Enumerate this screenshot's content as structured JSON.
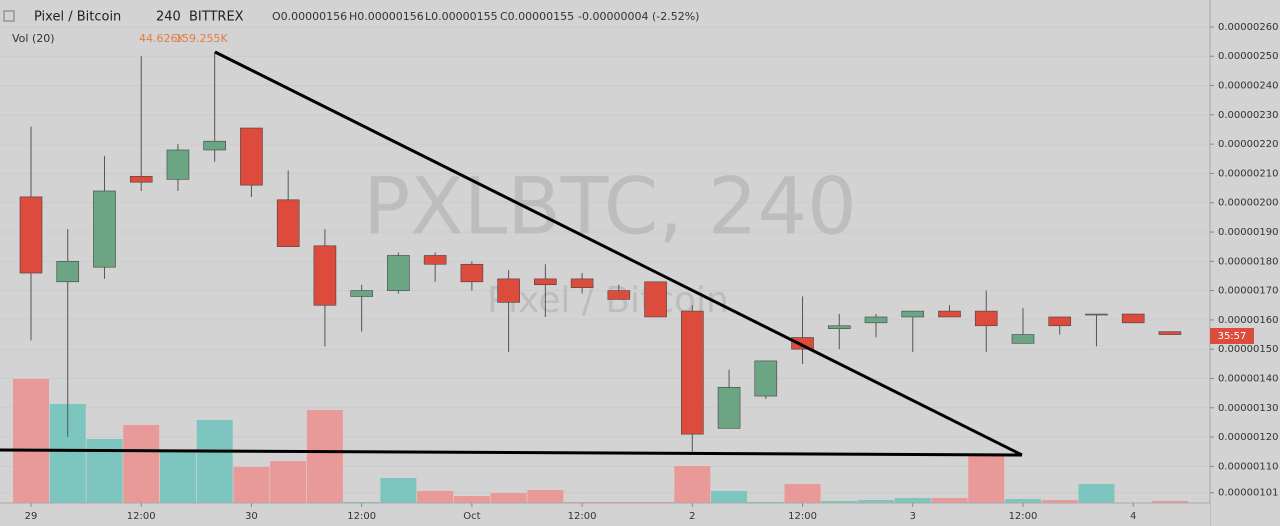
{
  "header": {
    "symbol": "Pixel / Bitcoin",
    "interval": "240",
    "exchange": "BITTREX",
    "open": "O0.00000156",
    "high": "H0.00000156",
    "low": "L0.00000155",
    "close": "C0.00000155",
    "change": "-0.00000004 (-2.52%)",
    "volume_label": "Vol (20)",
    "volume_value": "44.626K",
    "volume_ma": "159.255K",
    "watermark": "PXLBTC, 240",
    "watermark_sub": "Pixel / Bitcoin",
    "countdown": "35:57"
  },
  "chart_data": {
    "type": "candlestick",
    "categories": [
      "29",
      null,
      null,
      "12:00",
      null,
      null,
      "30",
      null,
      null,
      "12:00",
      null,
      null,
      "Oct",
      null,
      null,
      "12:00",
      null,
      null,
      "2",
      null,
      null,
      "12:00",
      null,
      null,
      "3",
      null,
      null,
      "12:00",
      null,
      null,
      "4",
      null
    ],
    "open": [
      2.02e-06,
      1.73e-06,
      1.78e-06,
      2.09e-06,
      2.08e-06,
      2.18e-06,
      2.255e-06,
      2.01e-06,
      1.853e-06,
      1.68e-06,
      1.7e-06,
      1.82e-06,
      1.79e-06,
      1.74e-06,
      1.74e-06,
      1.74e-06,
      1.7e-06,
      1.73e-06,
      1.63e-06,
      1.23e-06,
      1.34e-06,
      1.54e-06,
      1.57e-06,
      1.59e-06,
      1.61e-06,
      1.63e-06,
      1.63e-06,
      1.52e-06,
      1.61e-06,
      1.62e-06,
      1.62e-06,
      1.56e-06
    ],
    "high": [
      2.26e-06,
      1.91e-06,
      2.16e-06,
      2.5e-06,
      2.2e-06,
      2.515e-06,
      2.255e-06,
      2.11e-06,
      1.91e-06,
      1.72e-06,
      1.83e-06,
      1.83e-06,
      1.8e-06,
      1.77e-06,
      1.79e-06,
      1.76e-06,
      1.72e-06,
      1.73e-06,
      1.65e-06,
      1.43e-06,
      1.46e-06,
      1.68e-06,
      1.62e-06,
      1.62e-06,
      1.63e-06,
      1.65e-06,
      1.7e-06,
      1.64e-06,
      1.61e-06,
      1.62e-06,
      1.62e-06,
      1.56e-06
    ],
    "low": [
      1.53e-06,
      1.2e-06,
      1.74e-06,
      2.04e-06,
      2.04e-06,
      2.14e-06,
      2.02e-06,
      1.85e-06,
      1.51e-06,
      1.56e-06,
      1.69e-06,
      1.73e-06,
      1.7e-06,
      1.49e-06,
      1.61e-06,
      1.69e-06,
      1.67e-06,
      1.61e-06,
      1.15e-06,
      1.23e-06,
      1.33e-06,
      1.45e-06,
      1.5e-06,
      1.54e-06,
      1.49e-06,
      1.61e-06,
      1.49e-06,
      1.52e-06,
      1.55e-06,
      1.51e-06,
      1.59e-06,
      1.55e-06
    ],
    "close": [
      1.76e-06,
      1.8e-06,
      2.04e-06,
      2.07e-06,
      2.18e-06,
      2.21e-06,
      2.06e-06,
      1.85e-06,
      1.65e-06,
      1.7e-06,
      1.82e-06,
      1.79e-06,
      1.73e-06,
      1.66e-06,
      1.72e-06,
      1.71e-06,
      1.67e-06,
      1.61e-06,
      1.21e-06,
      1.37e-06,
      1.46e-06,
      1.5e-06,
      1.58e-06,
      1.61e-06,
      1.63e-06,
      1.61e-06,
      1.58e-06,
      1.55e-06,
      1.58e-06,
      1.62e-06,
      1.59e-06,
      1.55e-06
    ],
    "volume": [
      124,
      99,
      64,
      78,
      51,
      83,
      36,
      42,
      93,
      1,
      25,
      12,
      7,
      10,
      13,
      1,
      1,
      1,
      37,
      12,
      1,
      19,
      2,
      3,
      5,
      5,
      47,
      4,
      3,
      19,
      0,
      2
    ],
    "up_color": "#6ba583",
    "down_color": "#dd4b3c",
    "up_volume_color": "#7cc6bf",
    "down_volume_color": "#e99a98",
    "ylim": [
      9.75e-07,
      2.692e-06
    ],
    "yticks": [
      {
        "value": 2.6e-06,
        "label": "0.00000260"
      },
      {
        "value": 2.5e-06,
        "label": "0.00000250"
      },
      {
        "value": 2.4e-06,
        "label": "0.00000240"
      },
      {
        "value": 2.3e-06,
        "label": "0.00000230"
      },
      {
        "value": 2.2e-06,
        "label": "0.00000220"
      },
      {
        "value": 2.1e-06,
        "label": "0.00000210"
      },
      {
        "value": 2e-06,
        "label": "0.00000200"
      },
      {
        "value": 1.9e-06,
        "label": "0.00000190"
      },
      {
        "value": 1.8e-06,
        "label": "0.00000180"
      },
      {
        "value": 1.7e-06,
        "label": "0.00000170"
      },
      {
        "value": 1.6e-06,
        "label": "0.00000160"
      },
      {
        "value": 1.5e-06,
        "label": "0.00000150"
      },
      {
        "value": 1.4e-06,
        "label": "0.00000140"
      },
      {
        "value": 1.3e-06,
        "label": "0.00000130"
      },
      {
        "value": 1.2e-06,
        "label": "0.00000120"
      },
      {
        "value": 1.1e-06,
        "label": "0.00000110"
      },
      {
        "value": 1.01e-06,
        "label": "0.00000101"
      }
    ],
    "grid": true
  }
}
